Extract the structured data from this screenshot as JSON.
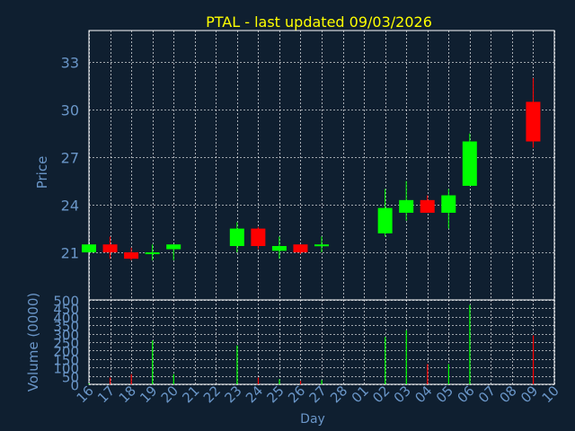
{
  "colors": {
    "background": "#0f1f30",
    "title": "#ffff00",
    "axis_text": "#6a96c8",
    "grid": "#ffffff",
    "up": "#00ff00",
    "down": "#ff0000"
  },
  "chart_data": [
    {
      "type": "candlestick",
      "title": "PTAL - last updated 09/03/2026",
      "ylabel": "Price",
      "ylim": [
        18,
        35
      ],
      "yticks": [
        21,
        24,
        27,
        30,
        33
      ],
      "grid": true,
      "categories": [
        "16",
        "17",
        "18",
        "19",
        "20",
        "21",
        "22",
        "23",
        "24",
        "25",
        "26",
        "27",
        "28",
        "01",
        "02",
        "03",
        "04",
        "05",
        "06",
        "07",
        "08",
        "09",
        "10"
      ],
      "candles": [
        {
          "day": "16",
          "open": 21.0,
          "close": 21.5,
          "high": 21.5,
          "low": 21.0
        },
        {
          "day": "17",
          "open": 21.5,
          "close": 21.0,
          "high": 22.0,
          "low": 20.6
        },
        {
          "day": "18",
          "open": 21.0,
          "close": 20.6,
          "high": 21.3,
          "low": 20.5
        },
        {
          "day": "19",
          "open": 20.9,
          "close": 21.0,
          "high": 21.5,
          "low": 20.5
        },
        {
          "day": "20",
          "open": 21.2,
          "close": 21.5,
          "high": 21.5,
          "low": 20.5
        },
        {
          "day": "23",
          "open": 21.4,
          "close": 22.5,
          "high": 22.9,
          "low": 21.0
        },
        {
          "day": "24",
          "open": 22.5,
          "close": 21.4,
          "high": 22.6,
          "low": 21.2
        },
        {
          "day": "25",
          "open": 21.1,
          "close": 21.4,
          "high": 22.0,
          "low": 20.6
        },
        {
          "day": "26",
          "open": 21.5,
          "close": 21.0,
          "high": 21.5,
          "low": 20.9
        },
        {
          "day": "27",
          "open": 21.4,
          "close": 21.5,
          "high": 22.0,
          "low": 21.0
        },
        {
          "day": "02",
          "open": 22.2,
          "close": 23.8,
          "high": 25.0,
          "low": 22.0
        },
        {
          "day": "03",
          "open": 23.5,
          "close": 24.3,
          "high": 25.5,
          "low": 23.0
        },
        {
          "day": "04",
          "open": 24.3,
          "close": 23.5,
          "high": 24.6,
          "low": 23.5
        },
        {
          "day": "05",
          "open": 23.5,
          "close": 24.6,
          "high": 25.0,
          "low": 22.5
        },
        {
          "day": "06",
          "open": 25.2,
          "close": 28.0,
          "high": 28.5,
          "low": 25.2
        },
        {
          "day": "09",
          "open": 30.5,
          "close": 28.0,
          "high": 32.0,
          "low": 27.6
        }
      ]
    },
    {
      "type": "bar",
      "ylabel": "Volume (0000)",
      "xlabel": "Day",
      "ylim": [
        0,
        500
      ],
      "yticks": [
        0,
        50,
        100,
        150,
        200,
        250,
        300,
        350,
        400,
        450,
        500
      ],
      "categories": [
        "16",
        "17",
        "18",
        "19",
        "20",
        "21",
        "22",
        "23",
        "24",
        "25",
        "26",
        "27",
        "28",
        "01",
        "02",
        "03",
        "04",
        "05",
        "06",
        "07",
        "08",
        "09",
        "10"
      ],
      "bars": [
        {
          "day": "16",
          "value": 5,
          "direction": "up"
        },
        {
          "day": "17",
          "value": 40,
          "direction": "down"
        },
        {
          "day": "18",
          "value": 60,
          "direction": "down"
        },
        {
          "day": "19",
          "value": 260,
          "direction": "up"
        },
        {
          "day": "20",
          "value": 60,
          "direction": "up"
        },
        {
          "day": "23",
          "value": 230,
          "direction": "up"
        },
        {
          "day": "24",
          "value": 40,
          "direction": "down"
        },
        {
          "day": "25",
          "value": 30,
          "direction": "up"
        },
        {
          "day": "26",
          "value": 20,
          "direction": "down"
        },
        {
          "day": "27",
          "value": 25,
          "direction": "up"
        },
        {
          "day": "02",
          "value": 280,
          "direction": "up"
        },
        {
          "day": "03",
          "value": 320,
          "direction": "up"
        },
        {
          "day": "04",
          "value": 120,
          "direction": "down"
        },
        {
          "day": "05",
          "value": 120,
          "direction": "up"
        },
        {
          "day": "06",
          "value": 470,
          "direction": "up"
        },
        {
          "day": "09",
          "value": 290,
          "direction": "down"
        }
      ]
    }
  ]
}
